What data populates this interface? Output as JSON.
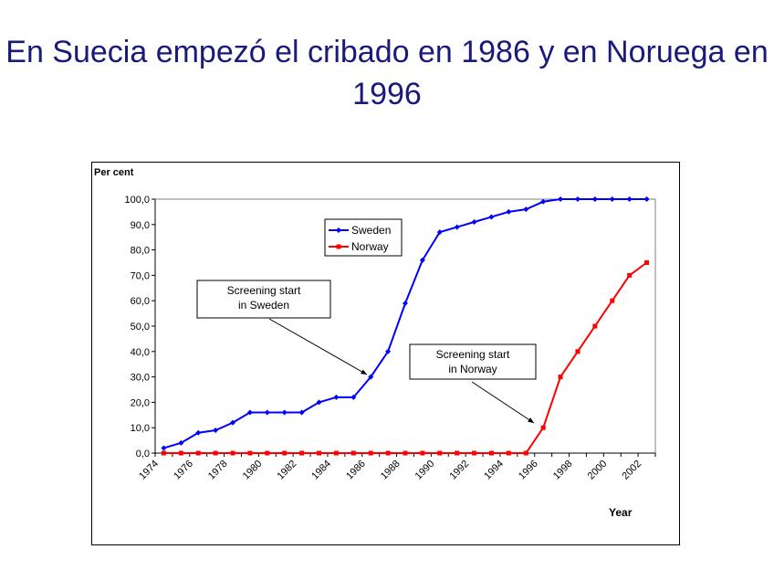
{
  "title": "En Suecia empezó el cribado en 1986 y en Noruega en 1996",
  "chart_data": {
    "type": "line",
    "ylabel": "Per cent",
    "xlabel": "Year",
    "ylim": [
      0,
      100
    ],
    "yticks": [
      "0,0",
      "10,0",
      "20,0",
      "30,0",
      "40,0",
      "50,0",
      "60,0",
      "70,0",
      "80,0",
      "90,0",
      "100,0"
    ],
    "categories": [
      1974,
      1975,
      1976,
      1977,
      1978,
      1979,
      1980,
      1981,
      1982,
      1983,
      1984,
      1985,
      1986,
      1987,
      1988,
      1989,
      1990,
      1991,
      1992,
      1993,
      1994,
      1995,
      1996,
      1997,
      1998,
      1999,
      2000,
      2001,
      2002
    ],
    "xtick_labels": [
      "1974",
      "1976",
      "1978",
      "1980",
      "1982",
      "1984",
      "1986",
      "1988",
      "1990",
      "1992",
      "1994",
      "1996",
      "1998",
      "2000",
      "2002"
    ],
    "series": [
      {
        "name": "Sweden",
        "color": "#0000ff",
        "marker": "diamond",
        "values": [
          2,
          4,
          8,
          9,
          12,
          16,
          16,
          16,
          16,
          20,
          22,
          22,
          30,
          40,
          59,
          76,
          87,
          89,
          91,
          93,
          95,
          96,
          99,
          100,
          100,
          100,
          100,
          100,
          100
        ]
      },
      {
        "name": "Norway",
        "color": "#ff0000",
        "marker": "square",
        "values": [
          0,
          0,
          0,
          0,
          0,
          0,
          0,
          0,
          0,
          0,
          0,
          0,
          0,
          0,
          0,
          0,
          0,
          0,
          0,
          0,
          0,
          0,
          10,
          30,
          40,
          50,
          60,
          70,
          75
        ]
      }
    ],
    "legend": "top-center",
    "annotations": [
      {
        "text1": "Screening start",
        "text2": "in Sweden",
        "target_year": 1986
      },
      {
        "text1": "Screening start",
        "text2": "in Norway",
        "target_year": 1996
      }
    ]
  }
}
